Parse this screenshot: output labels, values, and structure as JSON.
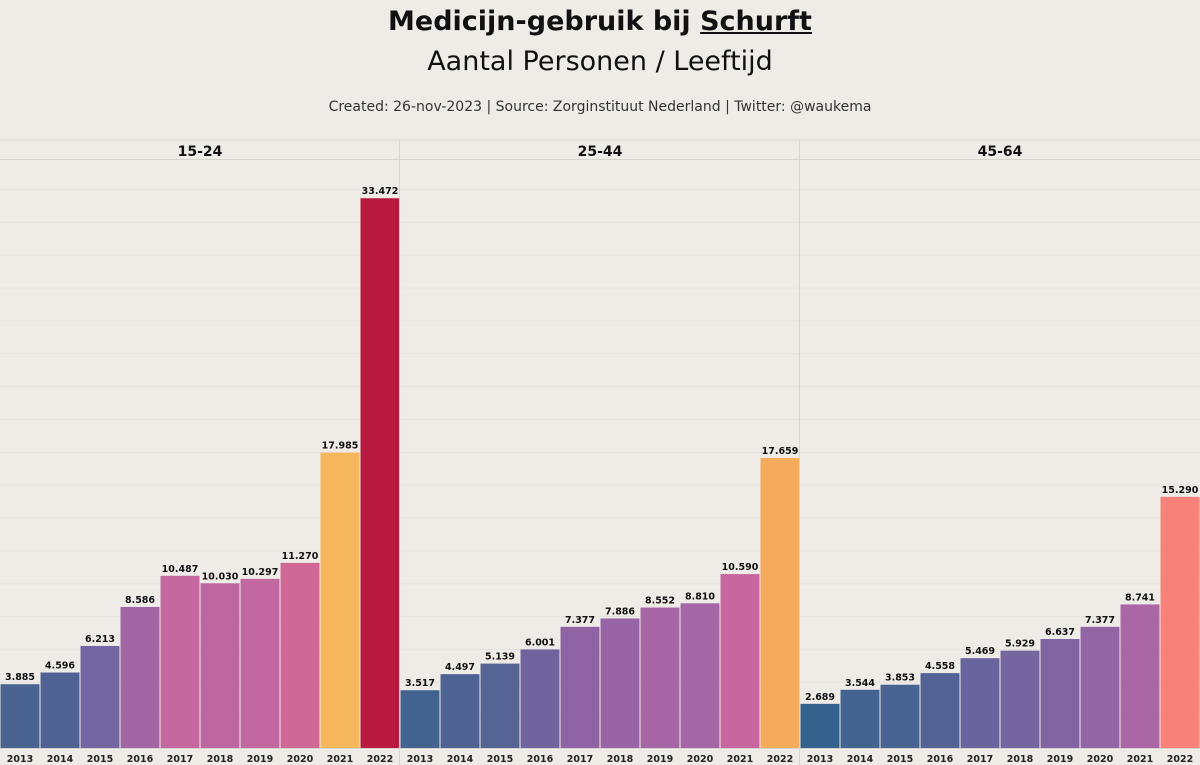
{
  "chart_data": {
    "type": "bar",
    "title": "Medicijn-gebruik bij Schurft",
    "title_plain": "Medicijn-gebruik bij ",
    "title_underlined": "Schurft",
    "subtitle": "Aantal Personen / Leeftijd",
    "credits": "Created: 26-nov-2023 | Source: Zorginstituut Nederland | Twitter: @waukema",
    "xlabel": "",
    "ylabel": "",
    "ylim": [
      0,
      35800
    ],
    "grid": true,
    "categories": [
      "2013",
      "2014",
      "2015",
      "2016",
      "2017",
      "2018",
      "2019",
      "2020",
      "2021",
      "2022"
    ],
    "panels": [
      {
        "name": "15-24",
        "values": [
          3885,
          4596,
          6213,
          8586,
          10487,
          10030,
          10297,
          11270,
          17985,
          33472
        ],
        "labels": [
          "3.885",
          "4.596",
          "6.213",
          "8.586",
          "10.487",
          "10.030",
          "10.297",
          "11.270",
          "17.985",
          "33.472"
        ],
        "colors": [
          "#4a6491",
          "#506294",
          "#7466a3",
          "#a366a5",
          "#c668a0",
          "#bd66a0",
          "#c267a0",
          "#d06896",
          "#f6b65c",
          "#b8193f"
        ]
      },
      {
        "name": "25-44",
        "values": [
          3517,
          4497,
          5139,
          6001,
          7377,
          7886,
          8552,
          8810,
          10590,
          17659
        ],
        "labels": [
          "3.517",
          "4.497",
          "5.139",
          "6.001",
          "7.377",
          "7.886",
          "8.552",
          "8.810",
          "10.590",
          "17.659"
        ],
        "colors": [
          "#426390",
          "#4e6394",
          "#566395",
          "#70649f",
          "#9064a4",
          "#9864a5",
          "#a666a5",
          "#a566a5",
          "#c866a0",
          "#f6ab5c"
        ]
      },
      {
        "name": "45-64",
        "values": [
          2689,
          3544,
          3853,
          4558,
          5469,
          5929,
          6637,
          7377,
          8741,
          15290
        ],
        "labels": [
          "2.689",
          "3.544",
          "3.853",
          "4.558",
          "5.469",
          "5.929",
          "6.637",
          "7.377",
          "8.741",
          "15.290"
        ],
        "colors": [
          "#34628c",
          "#426390",
          "#466391",
          "#546395",
          "#6a649e",
          "#74649f",
          "#8164a2",
          "#9266a5",
          "#aa66a5",
          "#f8827a"
        ]
      }
    ]
  }
}
